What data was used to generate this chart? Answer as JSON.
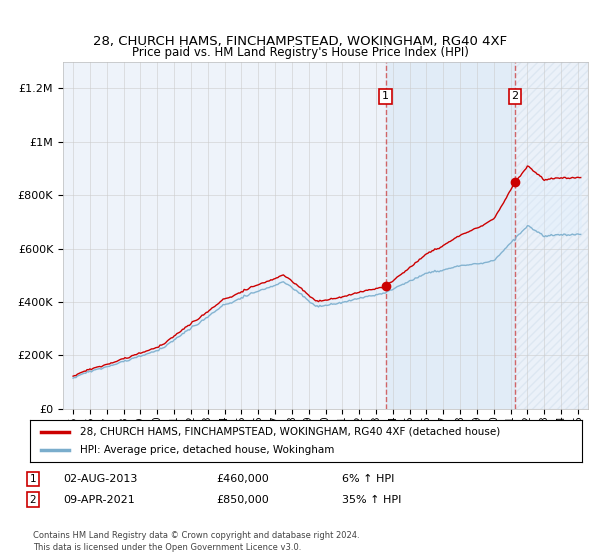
{
  "title": "28, CHURCH HAMS, FINCHAMPSTEAD, WOKINGHAM, RG40 4XF",
  "subtitle": "Price paid vs. HM Land Registry's House Price Index (HPI)",
  "ylabel_ticks": [
    "£0",
    "£200K",
    "£400K",
    "£600K",
    "£800K",
    "£1M",
    "£1.2M"
  ],
  "ytick_values": [
    0,
    200000,
    400000,
    600000,
    800000,
    1000000,
    1200000
  ],
  "ylim": [
    0,
    1300000
  ],
  "xlim_start": 1994.4,
  "xlim_end": 2025.6,
  "sale1_date": 2013.58,
  "sale1_price": 460000,
  "sale1_label": "1",
  "sale2_date": 2021.27,
  "sale2_price": 850000,
  "sale2_label": "2",
  "legend1_label": "28, CHURCH HAMS, FINCHAMPSTEAD, WOKINGHAM, RG40 4XF (detached house)",
  "legend2_label": "HPI: Average price, detached house, Wokingham",
  "footer": "Contains HM Land Registry data © Crown copyright and database right 2024.\nThis data is licensed under the Open Government Licence v3.0.",
  "line_color_red": "#cc0000",
  "line_color_blue": "#7aadcc",
  "fill_color_blue": "#ddeeff",
  "background_color": "#eef3fa",
  "grid_color": "#cccccc",
  "dashed_color": "#cc4444"
}
